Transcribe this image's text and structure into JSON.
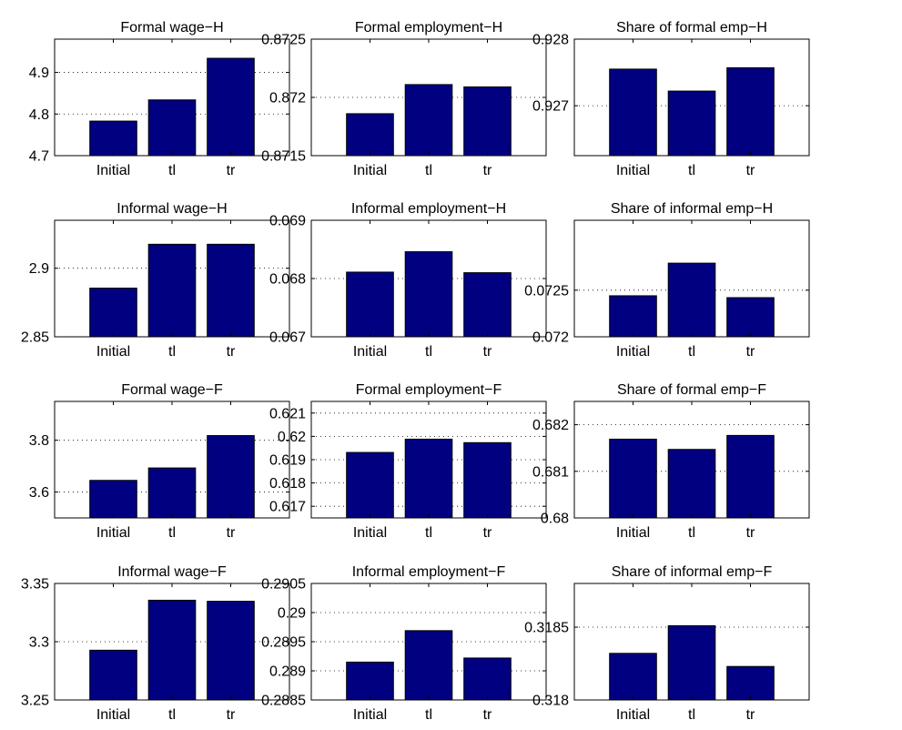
{
  "colors": {
    "bar": "#000080",
    "axis": "#000000",
    "grid": "#000000",
    "background": "#ffffff"
  },
  "chart_data": [
    {
      "type": "bar",
      "title": "Formal wage−H",
      "categories": [
        "Initial",
        "tl",
        "tr"
      ],
      "values": [
        4.783,
        4.834,
        4.934
      ],
      "ylim": [
        4.7,
        4.98
      ],
      "yticks": [
        4.7,
        4.8,
        4.9
      ],
      "ytick_labels": [
        "4.7",
        "4.8",
        "4.9"
      ],
      "grid": "y-dotted"
    },
    {
      "type": "bar",
      "title": "Formal employment−H",
      "categories": [
        "Initial",
        "tl",
        "tr"
      ],
      "values": [
        0.87186,
        0.87211,
        0.87209
      ],
      "ylim": [
        0.8715,
        0.8725
      ],
      "yticks": [
        0.8715,
        0.872,
        0.8725
      ],
      "ytick_labels": [
        "0.8715",
        "0.872",
        "0.8725"
      ],
      "grid": "y-dotted"
    },
    {
      "type": "bar",
      "title": "Share of formal emp−H",
      "categories": [
        "Initial",
        "tl",
        "tr"
      ],
      "values": [
        0.92755,
        0.92722,
        0.92757
      ],
      "ylim": [
        0.92625,
        0.928
      ],
      "yticks": [
        0.927,
        0.928
      ],
      "ytick_labels": [
        "0.927",
        "0.928"
      ],
      "grid": "y-dotted"
    },
    {
      "type": "bar",
      "title": "Informal wage−H",
      "categories": [
        "Initial",
        "tl",
        "tr"
      ],
      "values": [
        2.8855,
        2.9175,
        2.9175
      ],
      "ylim": [
        2.85,
        2.935
      ],
      "yticks": [
        2.85,
        2.9
      ],
      "ytick_labels": [
        "2.85",
        "2.9"
      ],
      "grid": "y-dotted"
    },
    {
      "type": "bar",
      "title": "Informal employment−H",
      "categories": [
        "Initial",
        "tl",
        "tr"
      ],
      "values": [
        0.06811,
        0.06846,
        0.0681
      ],
      "ylim": [
        0.067,
        0.069
      ],
      "yticks": [
        0.067,
        0.068,
        0.069
      ],
      "ytick_labels": [
        "0.067",
        "0.068",
        "0.069"
      ],
      "grid": "y-dotted"
    },
    {
      "type": "bar",
      "title": "Share of informal emp−H",
      "categories": [
        "Initial",
        "tl",
        "tr"
      ],
      "values": [
        0.07244,
        0.07279,
        0.07242
      ],
      "ylim": [
        0.072,
        0.07325
      ],
      "yticks": [
        0.072,
        0.0725
      ],
      "ytick_labels": [
        "0.072",
        "0.0725"
      ],
      "grid": "y-dotted"
    },
    {
      "type": "bar",
      "title": "Formal wage−F",
      "categories": [
        "Initial",
        "tl",
        "tr"
      ],
      "values": [
        3.645,
        3.693,
        3.818
      ],
      "ylim": [
        3.5,
        3.95
      ],
      "yticks": [
        3.6,
        3.8
      ],
      "ytick_labels": [
        "3.6",
        "3.8"
      ],
      "grid": "y-dotted"
    },
    {
      "type": "bar",
      "title": "Formal employment−F",
      "categories": [
        "Initial",
        "tl",
        "tr"
      ],
      "values": [
        0.61931,
        0.61988,
        0.61973
      ],
      "ylim": [
        0.6165,
        0.6215
      ],
      "yticks": [
        0.617,
        0.618,
        0.619,
        0.62,
        0.621
      ],
      "ytick_labels": [
        "0.617",
        "0.618",
        "0.619",
        "0.62",
        "0.621"
      ],
      "grid": "y-dotted"
    },
    {
      "type": "bar",
      "title": "Share of formal emp−F",
      "categories": [
        "Initial",
        "tl",
        "tr"
      ],
      "values": [
        0.68169,
        0.68147,
        0.68177
      ],
      "ylim": [
        0.68,
        0.6825
      ],
      "yticks": [
        0.68,
        0.681,
        0.682
      ],
      "ytick_labels": [
        "0.68",
        "0.681",
        "0.682"
      ],
      "grid": "y-dotted"
    },
    {
      "type": "bar",
      "title": "Informal wage−F",
      "categories": [
        "Initial",
        "tl",
        "tr"
      ],
      "values": [
        3.2927,
        3.3356,
        3.3347
      ],
      "ylim": [
        3.25,
        3.35
      ],
      "yticks": [
        3.25,
        3.3,
        3.35
      ],
      "ytick_labels": [
        "3.25",
        "3.3",
        "3.35"
      ],
      "grid": "y-dotted"
    },
    {
      "type": "bar",
      "title": "Informal employment−F",
      "categories": [
        "Initial",
        "tl",
        "tr"
      ],
      "values": [
        0.28915,
        0.28969,
        0.28922
      ],
      "ylim": [
        0.2885,
        0.2905
      ],
      "yticks": [
        0.2885,
        0.289,
        0.2895,
        0.29,
        0.2905
      ],
      "ytick_labels": [
        "0.2885",
        "0.289",
        "0.2895",
        "0.29",
        "0.2905"
      ],
      "grid": "y-dotted"
    },
    {
      "type": "bar",
      "title": "Share of informal emp−F",
      "categories": [
        "Initial",
        "tl",
        "tr"
      ],
      "values": [
        0.31832,
        0.31851,
        0.31823
      ],
      "ylim": [
        0.318,
        0.3188
      ],
      "yticks": [
        0.318,
        0.3185
      ],
      "ytick_labels": [
        "0.318",
        "0.3185"
      ],
      "grid": "y-dotted"
    }
  ]
}
